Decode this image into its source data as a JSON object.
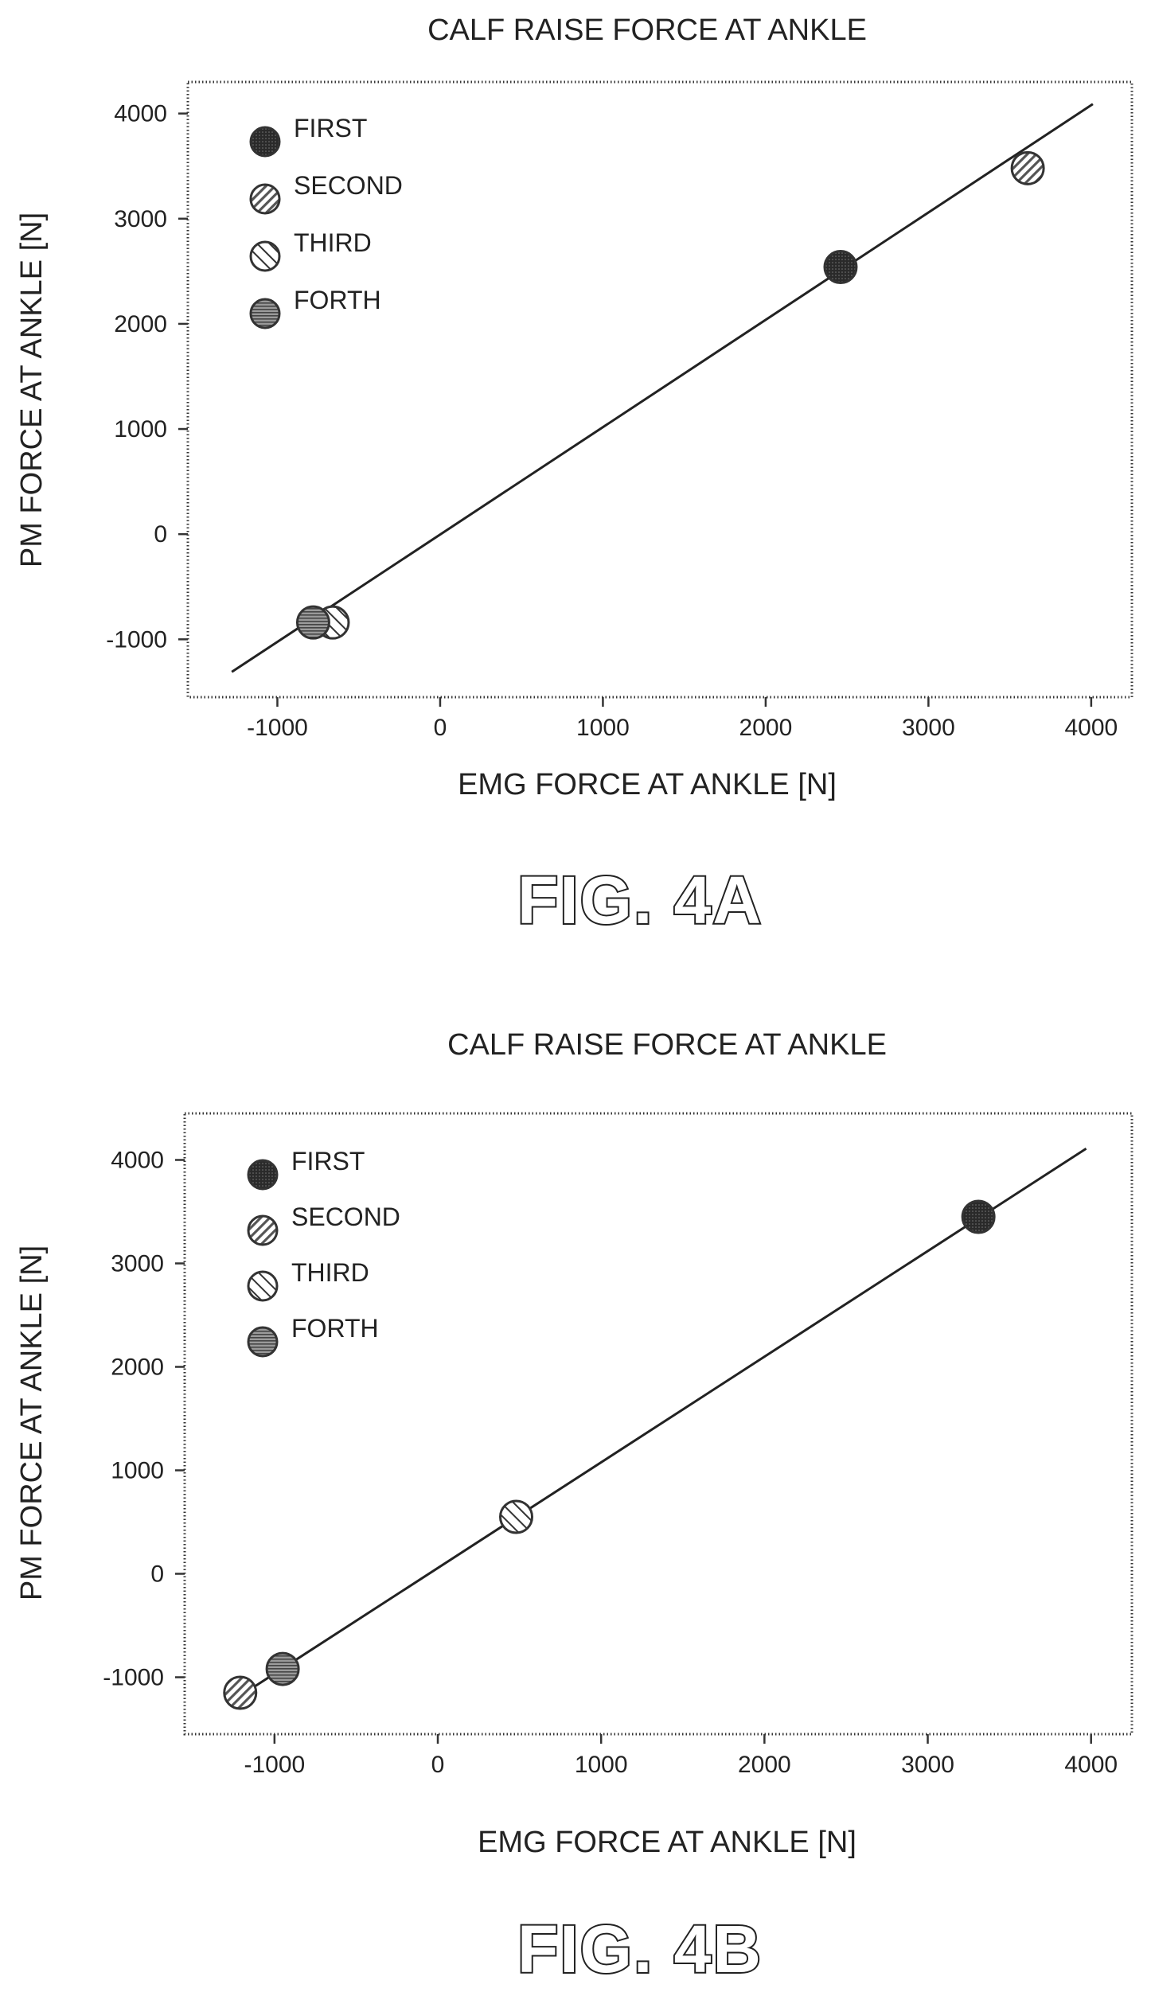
{
  "chart_data": [
    {
      "type": "scatter",
      "title": "CALF RAISE FORCE AT ANKLE",
      "xlabel": "EMG FORCE AT ANKLE [N]",
      "ylabel": "PM FORCE AT ANKLE [N]",
      "xlim": [
        -1550,
        4250
      ],
      "ylim": [
        -1550,
        4300
      ],
      "xticks": [
        "-1000",
        "0",
        "1000",
        "2000",
        "3000",
        "4000"
      ],
      "yticks": [
        "4000",
        "3000",
        "2000",
        "1000",
        "0",
        "-1000"
      ],
      "legend_position": "top-left",
      "fit_line": {
        "x": [
          -1280,
          4010
        ],
        "y": [
          -1310,
          4090
        ]
      },
      "series": [
        {
          "name": "FIRST",
          "x": [
            2460
          ],
          "y": [
            2540
          ]
        },
        {
          "name": "SECOND",
          "x": [
            3610
          ],
          "y": [
            3480
          ]
        },
        {
          "name": "THIRD",
          "x": [
            -660
          ],
          "y": [
            -840
          ]
        },
        {
          "name": "FORTH",
          "x": [
            -780
          ],
          "y": [
            -840
          ]
        }
      ],
      "figure_label": "FIG. 4A"
    },
    {
      "type": "scatter",
      "title": "CALF RAISE FORCE AT ANKLE",
      "xlabel": "EMG FORCE AT ANKLE [N]",
      "ylabel": "PM FORCE AT ANKLE [N]",
      "xlim": [
        -1550,
        4250
      ],
      "ylim": [
        -1550,
        4450
      ],
      "xticks": [
        "-1000",
        "0",
        "1000",
        "2000",
        "3000",
        "4000"
      ],
      "yticks": [
        "4000",
        "3000",
        "2000",
        "1000",
        "0",
        "-1000"
      ],
      "legend_position": "top-left",
      "fit_line": {
        "x": [
          -1230,
          3970
        ],
        "y": [
          -1200,
          4110
        ]
      },
      "series": [
        {
          "name": "FIRST",
          "x": [
            3310
          ],
          "y": [
            3450
          ]
        },
        {
          "name": "SECOND",
          "x": [
            -1210
          ],
          "y": [
            -1150
          ]
        },
        {
          "name": "THIRD",
          "x": [
            480
          ],
          "y": [
            550
          ]
        },
        {
          "name": "FORTH",
          "x": [
            -950
          ],
          "y": [
            -920
          ]
        }
      ],
      "figure_label": "FIG. 4B"
    }
  ]
}
